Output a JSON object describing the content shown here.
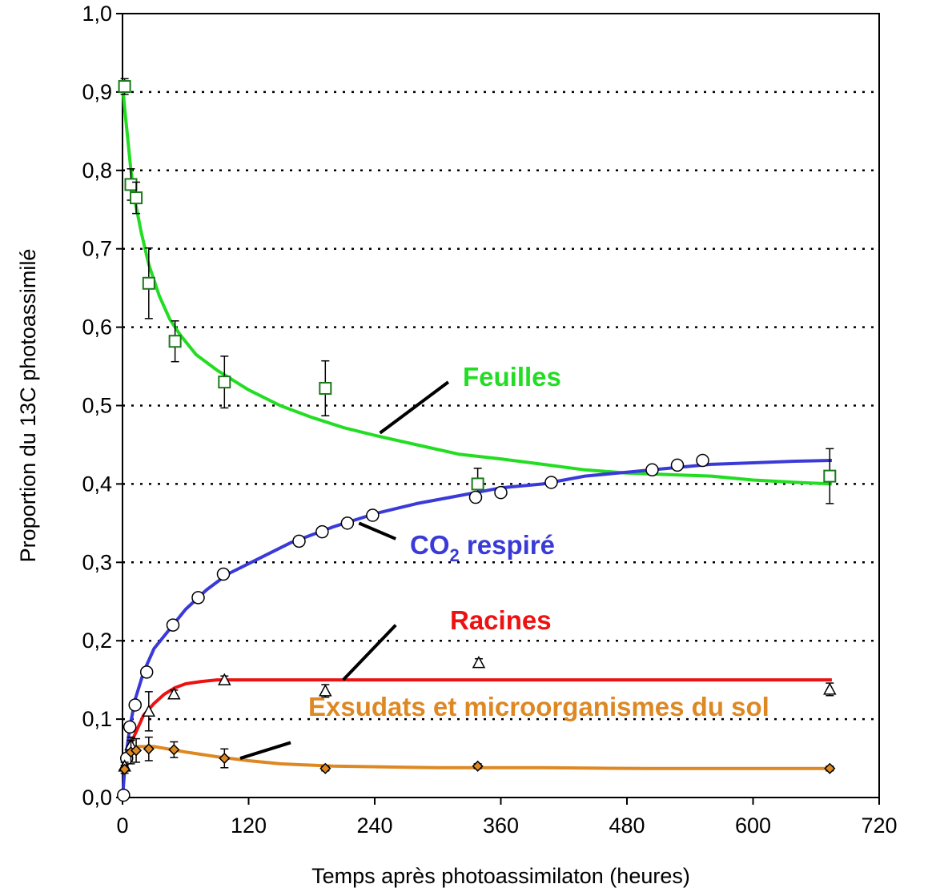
{
  "chart_data": {
    "type": "line",
    "title": "",
    "xlabel": "Temps après photoassimilaton (heures)",
    "ylabel": "Proportion du 13C photoassimilé",
    "xlim": [
      0,
      720
    ],
    "ylim": [
      0,
      1.0
    ],
    "x_ticks": [
      0,
      120,
      240,
      360,
      480,
      600,
      720
    ],
    "x_tick_labels": [
      "0",
      "120",
      "240",
      "360",
      "480",
      "600",
      "720"
    ],
    "y_ticks": [
      0,
      0.1,
      0.2,
      0.3,
      0.4,
      0.5,
      0.6,
      0.7,
      0.8,
      0.9,
      1.0
    ],
    "y_tick_labels": [
      "0,0",
      "0,1",
      "0,2",
      "0,3",
      "0,4",
      "0,5",
      "0,6",
      "0,7",
      "0,8",
      "0,9",
      "1,0"
    ],
    "grid": "horizontal dotted",
    "series": [
      {
        "name": "Feuilles",
        "color": "#22dd22",
        "marker": "square",
        "marker_color": "#1a7a1a",
        "fit": [
          [
            0,
            0.91
          ],
          [
            2,
            0.88
          ],
          [
            5,
            0.84
          ],
          [
            8,
            0.8
          ],
          [
            12,
            0.76
          ],
          [
            18,
            0.72
          ],
          [
            25,
            0.68
          ],
          [
            35,
            0.64
          ],
          [
            45,
            0.61
          ],
          [
            55,
            0.59
          ],
          [
            70,
            0.565
          ],
          [
            90,
            0.545
          ],
          [
            120,
            0.52
          ],
          [
            150,
            0.5
          ],
          [
            180,
            0.485
          ],
          [
            210,
            0.472
          ],
          [
            240,
            0.462
          ],
          [
            280,
            0.45
          ],
          [
            320,
            0.438
          ],
          [
            360,
            0.432
          ],
          [
            400,
            0.425
          ],
          [
            440,
            0.418
          ],
          [
            480,
            0.414
          ],
          [
            520,
            0.412
          ],
          [
            560,
            0.41
          ],
          [
            600,
            0.405
          ],
          [
            640,
            0.402
          ],
          [
            675,
            0.4
          ]
        ],
        "points": [
          {
            "x": 2,
            "y": 0.907,
            "err": 0.01
          },
          {
            "x": 8,
            "y": 0.782,
            "err": 0.02
          },
          {
            "x": 13,
            "y": 0.765,
            "err": 0.02
          },
          {
            "x": 25,
            "y": 0.656,
            "err": 0.045
          },
          {
            "x": 50,
            "y": 0.582,
            "err": 0.026
          },
          {
            "x": 97,
            "y": 0.53,
            "err": 0.033
          },
          {
            "x": 193,
            "y": 0.522,
            "err": 0.035
          },
          {
            "x": 338,
            "y": 0.4,
            "err": 0.02
          },
          {
            "x": 673,
            "y": 0.41,
            "err": 0.035
          }
        ]
      },
      {
        "name": "CO2 respiré",
        "color": "#3a3ad8",
        "marker": "circle",
        "marker_color": "#000000",
        "fit": [
          [
            0,
            0
          ],
          [
            3,
            0.05
          ],
          [
            7,
            0.09
          ],
          [
            12,
            0.125
          ],
          [
            20,
            0.16
          ],
          [
            30,
            0.19
          ],
          [
            45,
            0.215
          ],
          [
            60,
            0.24
          ],
          [
            80,
            0.265
          ],
          [
            100,
            0.285
          ],
          [
            130,
            0.305
          ],
          [
            160,
            0.325
          ],
          [
            200,
            0.345
          ],
          [
            240,
            0.362
          ],
          [
            280,
            0.375
          ],
          [
            320,
            0.385
          ],
          [
            360,
            0.395
          ],
          [
            400,
            0.4
          ],
          [
            440,
            0.41
          ],
          [
            480,
            0.415
          ],
          [
            520,
            0.42
          ],
          [
            560,
            0.425
          ],
          [
            600,
            0.427
          ],
          [
            640,
            0.429
          ],
          [
            675,
            0.43
          ]
        ],
        "points": [
          {
            "x": 1,
            "y": 0.003
          },
          {
            "x": 4,
            "y": 0.05
          },
          {
            "x": 7,
            "y": 0.09
          },
          {
            "x": 12,
            "y": 0.118
          },
          {
            "x": 23,
            "y": 0.16
          },
          {
            "x": 48,
            "y": 0.22
          },
          {
            "x": 72,
            "y": 0.255
          },
          {
            "x": 96,
            "y": 0.285
          },
          {
            "x": 168,
            "y": 0.327
          },
          {
            "x": 190,
            "y": 0.339
          },
          {
            "x": 214,
            "y": 0.35
          },
          {
            "x": 238,
            "y": 0.36
          },
          {
            "x": 336,
            "y": 0.383
          },
          {
            "x": 360,
            "y": 0.389
          },
          {
            "x": 408,
            "y": 0.402
          },
          {
            "x": 504,
            "y": 0.418
          },
          {
            "x": 528,
            "y": 0.424
          },
          {
            "x": 552,
            "y": 0.43
          }
        ]
      },
      {
        "name": "Racines",
        "color": "#ee1111",
        "marker": "triangle",
        "marker_color": "#000000",
        "fit": [
          [
            0,
            0.035
          ],
          [
            5,
            0.055
          ],
          [
            10,
            0.075
          ],
          [
            15,
            0.09
          ],
          [
            20,
            0.105
          ],
          [
            30,
            0.12
          ],
          [
            40,
            0.132
          ],
          [
            50,
            0.14
          ],
          [
            60,
            0.145
          ],
          [
            75,
            0.148
          ],
          [
            90,
            0.15
          ],
          [
            180,
            0.15
          ],
          [
            675,
            0.15
          ]
        ],
        "points": [
          {
            "x": 2,
            "y": 0.04,
            "err": 0.005
          },
          {
            "x": 8,
            "y": 0.067,
            "err": 0.01
          },
          {
            "x": 25,
            "y": 0.11,
            "err": 0.025
          },
          {
            "x": 49,
            "y": 0.132,
            "err": 0.005
          },
          {
            "x": 97,
            "y": 0.15,
            "err": 0.005
          },
          {
            "x": 193,
            "y": 0.136,
            "err": 0.008
          },
          {
            "x": 339,
            "y": 0.172,
            "err": 0.005
          },
          {
            "x": 673,
            "y": 0.138,
            "err": 0.008
          }
        ]
      },
      {
        "name": "Exsudats et microorganismes  du sol",
        "color": "#dd8822",
        "marker": "diamond",
        "marker_color": "#000000",
        "fit": [
          [
            0,
            0.035
          ],
          [
            4,
            0.05
          ],
          [
            8,
            0.06
          ],
          [
            15,
            0.065
          ],
          [
            30,
            0.065
          ],
          [
            60,
            0.058
          ],
          [
            90,
            0.052
          ],
          [
            120,
            0.047
          ],
          [
            150,
            0.043
          ],
          [
            200,
            0.04
          ],
          [
            300,
            0.038
          ],
          [
            400,
            0.038
          ],
          [
            500,
            0.037
          ],
          [
            675,
            0.037
          ]
        ],
        "points": [
          {
            "x": 2,
            "y": 0.036,
            "err": 0.005
          },
          {
            "x": 8,
            "y": 0.058,
            "err": 0.015
          },
          {
            "x": 13,
            "y": 0.06,
            "err": 0.015
          },
          {
            "x": 25,
            "y": 0.062,
            "err": 0.015
          },
          {
            "x": 49,
            "y": 0.061,
            "err": 0.01
          },
          {
            "x": 97,
            "y": 0.05,
            "err": 0.012
          },
          {
            "x": 193,
            "y": 0.037,
            "err": 0.003
          },
          {
            "x": 338,
            "y": 0.04,
            "err": 0.003
          },
          {
            "x": 673,
            "y": 0.037,
            "err": 0.003
          }
        ]
      }
    ],
    "annotations": [
      {
        "series": "Feuilles",
        "text": "Feuilles",
        "color": "#22dd22",
        "pointer_from": [
          245,
          0.465
        ],
        "pointer_to": [
          310,
          0.53
        ]
      },
      {
        "series": "CO2 respiré",
        "text_main": "CO",
        "text_sub": "2",
        "text_rest": " respiré",
        "color": "#3a3ad8",
        "pointer_from": [
          225,
          0.35
        ],
        "pointer_to": [
          260,
          0.33
        ]
      },
      {
        "series": "Racines",
        "text": "Racines",
        "color": "#ee1111",
        "pointer_from": [
          210,
          0.15
        ],
        "pointer_to": [
          260,
          0.22
        ]
      },
      {
        "series": "Exsudats et microorganismes  du sol",
        "text": "Exsudats et microorganismes  du sol",
        "color": "#dd8822",
        "pointer_from": [
          112,
          0.05
        ],
        "pointer_to": [
          160,
          0.07
        ]
      }
    ]
  }
}
